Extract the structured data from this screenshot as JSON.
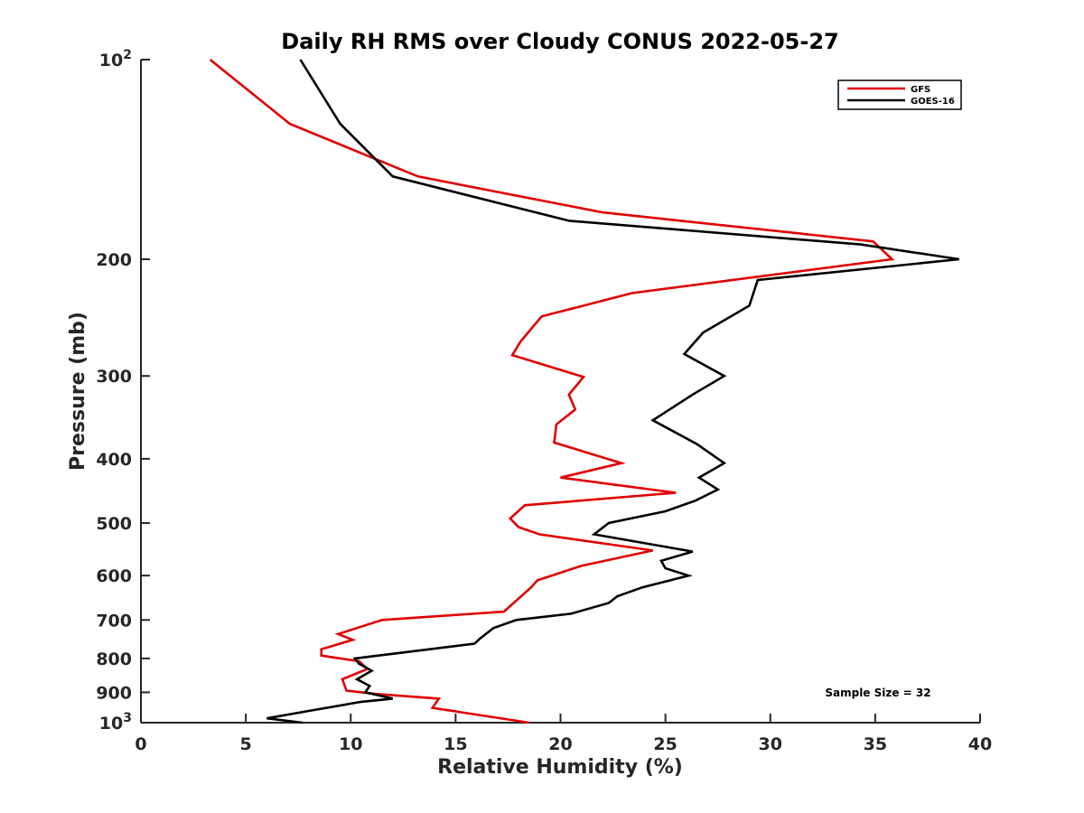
{
  "chart_data": {
    "type": "line",
    "title": "Daily RH RMS over Cloudy CONUS 2022-05-27",
    "xlabel": "Relative Humidity (%)",
    "ylabel": "Pressure (mb)",
    "xlim": [
      0,
      40
    ],
    "ylim": [
      100,
      1000
    ],
    "y_scale": "log",
    "y_reversed": true,
    "x_ticks": [
      0,
      5,
      10,
      15,
      20,
      25,
      30,
      35,
      40
    ],
    "x_tick_labels": [
      "0",
      "5",
      "10",
      "15",
      "20",
      "25",
      "30",
      "35",
      "40"
    ],
    "y_ticks": [
      {
        "value": 100,
        "label": "10",
        "sup": "2"
      },
      {
        "value": 200,
        "label": "200"
      },
      {
        "value": 300,
        "label": "300"
      },
      {
        "value": 400,
        "label": "400"
      },
      {
        "value": 500,
        "label": "500"
      },
      {
        "value": 600,
        "label": "600"
      },
      {
        "value": 700,
        "label": "700"
      },
      {
        "value": 800,
        "label": "800"
      },
      {
        "value": 900,
        "label": "900"
      },
      {
        "value": 1000,
        "label": "10",
        "sup": "3"
      }
    ],
    "legend_position": "top-right",
    "grid": false,
    "annotation": "Sample Size = 32",
    "series": [
      {
        "name": "GFS",
        "color": "#e00000",
        "points": [
          [
            3.3,
            100
          ],
          [
            7.1,
            125
          ],
          [
            13.2,
            150
          ],
          [
            22.0,
            170
          ],
          [
            34.9,
            188
          ],
          [
            35.8,
            200
          ],
          [
            23.4,
            225
          ],
          [
            19.1,
            244
          ],
          [
            18.1,
            266
          ],
          [
            17.7,
            279
          ],
          [
            21.1,
            301
          ],
          [
            20.4,
            320
          ],
          [
            20.7,
            337
          ],
          [
            19.8,
            355
          ],
          [
            19.7,
            378
          ],
          [
            22.9,
            406
          ],
          [
            20.0,
            427
          ],
          [
            25.5,
            450
          ],
          [
            18.3,
            470
          ],
          [
            17.6,
            492
          ],
          [
            18.0,
            507
          ],
          [
            19.0,
            520
          ],
          [
            24.4,
            550
          ],
          [
            21.0,
            580
          ],
          [
            18.9,
            610
          ],
          [
            18.6,
            625
          ],
          [
            17.3,
            680
          ],
          [
            11.5,
            700
          ],
          [
            9.4,
            735
          ],
          [
            10.1,
            750
          ],
          [
            8.6,
            775
          ],
          [
            8.6,
            792
          ],
          [
            10.4,
            808
          ],
          [
            10.8,
            830
          ],
          [
            9.6,
            860
          ],
          [
            9.8,
            895
          ],
          [
            11.2,
            905
          ],
          [
            14.2,
            920
          ],
          [
            13.9,
            950
          ],
          [
            15.3,
            965
          ],
          [
            18.5,
            1000
          ]
        ]
      },
      {
        "name": "GOES-16",
        "color": "#000000",
        "points": [
          [
            7.6,
            100
          ],
          [
            9.5,
            125
          ],
          [
            12.0,
            150
          ],
          [
            20.4,
            175
          ],
          [
            34.3,
            190
          ],
          [
            39.0,
            200
          ],
          [
            29.4,
            215
          ],
          [
            29.0,
            235
          ],
          [
            26.8,
            258
          ],
          [
            25.9,
            278
          ],
          [
            27.8,
            300
          ],
          [
            26.3,
            320
          ],
          [
            24.4,
            350
          ],
          [
            26.5,
            380
          ],
          [
            27.8,
            406
          ],
          [
            26.6,
            427
          ],
          [
            27.5,
            445
          ],
          [
            26.4,
            463
          ],
          [
            25.0,
            480
          ],
          [
            22.3,
            500
          ],
          [
            21.6,
            520
          ],
          [
            26.3,
            552
          ],
          [
            24.8,
            570
          ],
          [
            25.0,
            585
          ],
          [
            26.1,
            600
          ],
          [
            23.9,
            625
          ],
          [
            22.7,
            645
          ],
          [
            22.3,
            660
          ],
          [
            20.5,
            685
          ],
          [
            17.9,
            700
          ],
          [
            16.8,
            720
          ],
          [
            16.2,
            745
          ],
          [
            15.9,
            760
          ],
          [
            10.2,
            800
          ],
          [
            10.4,
            815
          ],
          [
            11.0,
            835
          ],
          [
            10.3,
            860
          ],
          [
            10.9,
            880
          ],
          [
            10.8,
            890
          ],
          [
            10.7,
            900
          ],
          [
            12.0,
            920
          ],
          [
            10.5,
            930
          ],
          [
            8.0,
            960
          ],
          [
            6.0,
            985
          ],
          [
            7.7,
            1000
          ]
        ]
      }
    ]
  }
}
